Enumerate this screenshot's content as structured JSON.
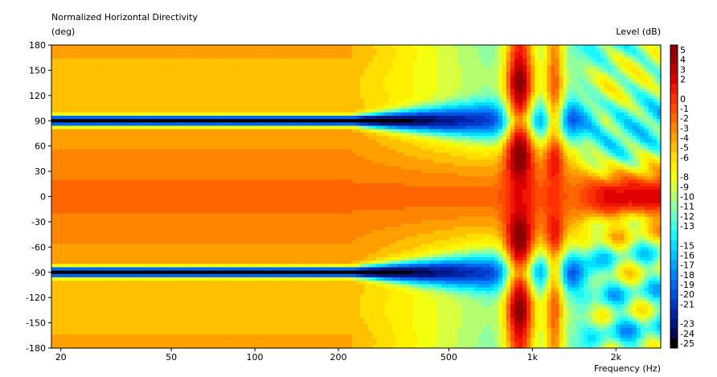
{
  "chart_data": {
    "type": "heatmap",
    "title": "Normalized Horizontal Directivity",
    "ylabel": "(deg)",
    "xlabel": "Frequency  (Hz)",
    "colorbar_label": "Level  (dB)",
    "x_scale": "log",
    "xlim": [
      18.5,
      2900
    ],
    "ylim": [
      -180,
      180
    ],
    "x_ticks": [
      {
        "value": 20,
        "label": "20"
      },
      {
        "value": 50,
        "label": "50"
      },
      {
        "value": 100,
        "label": "100"
      },
      {
        "value": 200,
        "label": "200"
      },
      {
        "value": 500,
        "label": "500"
      },
      {
        "value": 1000,
        "label": "1k"
      },
      {
        "value": 2000,
        "label": "2k"
      }
    ],
    "y_ticks": [
      180,
      150,
      120,
      90,
      60,
      30,
      0,
      -30,
      -60,
      -90,
      -120,
      -150,
      -180
    ],
    "y_tick_labels": [
      "180",
      "150",
      "120",
      "90",
      "60",
      "30",
      "0",
      "-30",
      "-60",
      "-90",
      "-120",
      "-150",
      "-180"
    ],
    "colorbar": [
      {
        "value": 5,
        "label": "5",
        "color": "#8b0000"
      },
      {
        "value": 4,
        "label": "4",
        "color": "#a00000"
      },
      {
        "value": 3,
        "label": "3",
        "color": "#c00000"
      },
      {
        "value": 2,
        "label": "2",
        "color": "#e00000"
      },
      {
        "value": 1,
        "label": "",
        "color": "#f21800"
      },
      {
        "value": 0,
        "label": "0",
        "color": "#ff3000"
      },
      {
        "value": -1,
        "label": "-1",
        "color": "#ff4a00"
      },
      {
        "value": -2,
        "label": "-2",
        "color": "#ff6600"
      },
      {
        "value": -3,
        "label": "-3",
        "color": "#ff8400"
      },
      {
        "value": -4,
        "label": "-4",
        "color": "#ffa000"
      },
      {
        "value": -5,
        "label": "-5",
        "color": "#ffc000"
      },
      {
        "value": -6,
        "label": "-6",
        "color": "#ffde00"
      },
      {
        "value": -7,
        "label": "",
        "color": "#fff000"
      },
      {
        "value": -8,
        "label": "-8",
        "color": "#f4ff10"
      },
      {
        "value": -9,
        "label": "-9",
        "color": "#d8ff40"
      },
      {
        "value": -10,
        "label": "-10",
        "color": "#b4ff70"
      },
      {
        "value": -11,
        "label": "-11",
        "color": "#90ffa0"
      },
      {
        "value": -12,
        "label": "-12",
        "color": "#6cffc8"
      },
      {
        "value": -13,
        "label": "-13",
        "color": "#40ffe8"
      },
      {
        "value": -14,
        "label": "",
        "color": "#1af8ff"
      },
      {
        "value": -15,
        "label": "-15",
        "color": "#00e0ff"
      },
      {
        "value": -16,
        "label": "-16",
        "color": "#00c4ff"
      },
      {
        "value": -17,
        "label": "-17",
        "color": "#00a4ff"
      },
      {
        "value": -18,
        "label": "-18",
        "color": "#0084ff"
      },
      {
        "value": -19,
        "label": "-19",
        "color": "#0068f0"
      },
      {
        "value": -20,
        "label": "-20",
        "color": "#0050e0"
      },
      {
        "value": -21,
        "label": "-21",
        "color": "#0038c8"
      },
      {
        "value": -22,
        "label": "",
        "color": "#0024a8"
      },
      {
        "value": -23,
        "label": "-23",
        "color": "#001684"
      },
      {
        "value": -24,
        "label": "-24",
        "color": "#000a50"
      },
      {
        "value": -25,
        "label": "-25",
        "color": "#000000"
      }
    ],
    "grid": false,
    "legend": "colorbar-right"
  }
}
